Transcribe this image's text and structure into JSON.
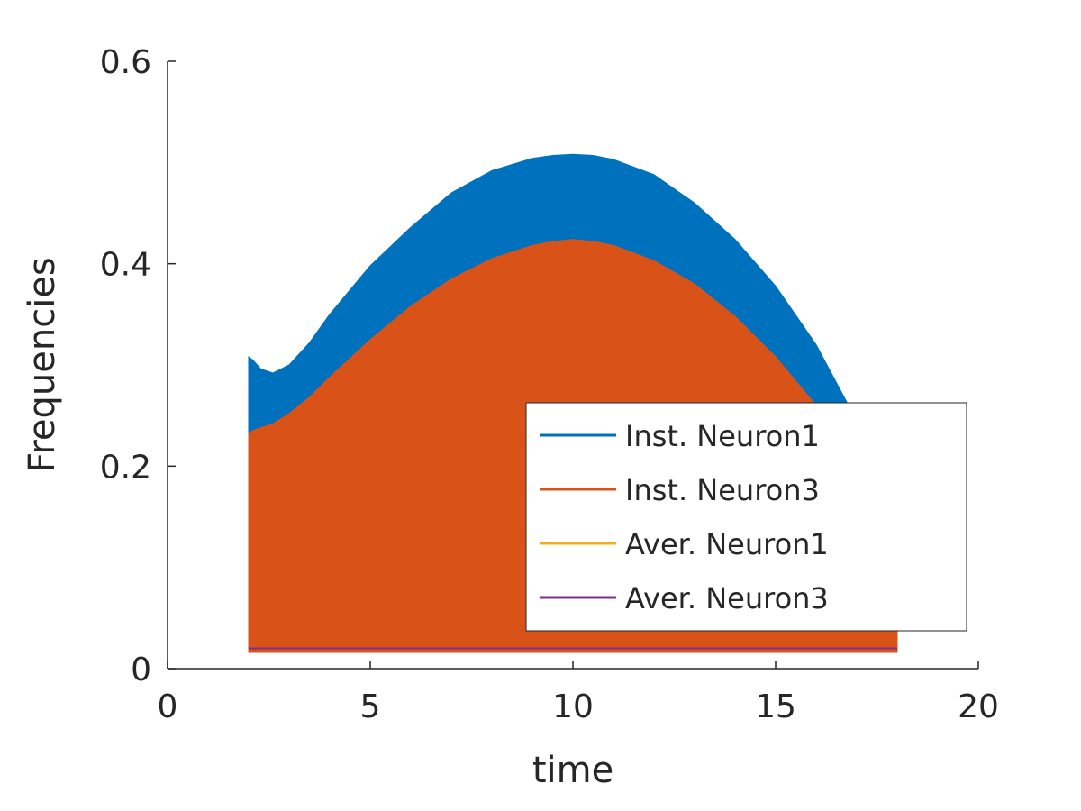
{
  "chart_data": {
    "type": "area",
    "xlabel": "time",
    "ylabel": "Frequencies",
    "xlim": [
      0,
      20
    ],
    "ylim": [
      0,
      0.6
    ],
    "xticks": [
      0,
      5,
      10,
      15,
      20
    ],
    "xtick_labels": [
      "0",
      "5",
      "10",
      "15",
      "20"
    ],
    "yticks": [
      0,
      0.2,
      0.4,
      0.6
    ],
    "ytick_labels": [
      "0",
      "0.2",
      "0.4",
      "0.6"
    ],
    "grid": false,
    "legend_position": "lower-right",
    "series": [
      {
        "name": "Inst. Neuron1",
        "color": "#0072BD",
        "x": [
          2,
          2.1,
          2.3,
          2.6,
          3,
          3.5,
          4,
          5,
          6,
          7,
          8,
          9,
          9.5,
          10,
          10.5,
          11,
          12,
          13,
          14,
          15,
          16,
          17,
          17.5,
          18
        ],
        "upper": [
          0.308,
          0.305,
          0.296,
          0.292,
          0.3,
          0.322,
          0.35,
          0.398,
          0.436,
          0.47,
          0.492,
          0.504,
          0.507,
          0.508,
          0.507,
          0.503,
          0.488,
          0.46,
          0.424,
          0.378,
          0.32,
          0.245,
          0.2,
          0.16
        ],
        "lower": [
          0.232,
          0.235,
          0.238,
          0.242,
          0.252,
          0.268,
          0.288,
          0.325,
          0.358,
          0.385,
          0.405,
          0.418,
          0.422,
          0.424,
          0.422,
          0.418,
          0.403,
          0.38,
          0.348,
          0.308,
          0.26,
          0.2,
          0.166,
          0.13
        ]
      },
      {
        "name": "Inst. Neuron3",
        "color": "#D95319",
        "x": [
          2,
          2.1,
          2.3,
          2.6,
          3,
          3.5,
          4,
          5,
          6,
          7,
          8,
          9,
          9.5,
          10,
          10.5,
          11,
          12,
          13,
          14,
          15,
          16,
          17,
          17.5,
          18
        ],
        "upper": [
          0.232,
          0.235,
          0.238,
          0.242,
          0.252,
          0.268,
          0.288,
          0.325,
          0.358,
          0.385,
          0.405,
          0.418,
          0.422,
          0.424,
          0.422,
          0.418,
          0.403,
          0.38,
          0.348,
          0.308,
          0.26,
          0.2,
          0.166,
          0.13
        ],
        "lower": [
          0.016,
          0.016,
          0.016,
          0.016,
          0.016,
          0.016,
          0.016,
          0.016,
          0.016,
          0.016,
          0.016,
          0.016,
          0.016,
          0.016,
          0.016,
          0.016,
          0.016,
          0.016,
          0.016,
          0.016,
          0.016,
          0.016,
          0.016,
          0.016
        ]
      },
      {
        "name": "Aver. Neuron1",
        "color": "#EDB120",
        "x": [
          2,
          18
        ],
        "y": [
          0.02,
          0.02
        ]
      },
      {
        "name": "Aver. Neuron3",
        "color": "#7E2F8E",
        "x": [
          2,
          18
        ],
        "y": [
          0.02,
          0.02
        ]
      }
    ]
  }
}
